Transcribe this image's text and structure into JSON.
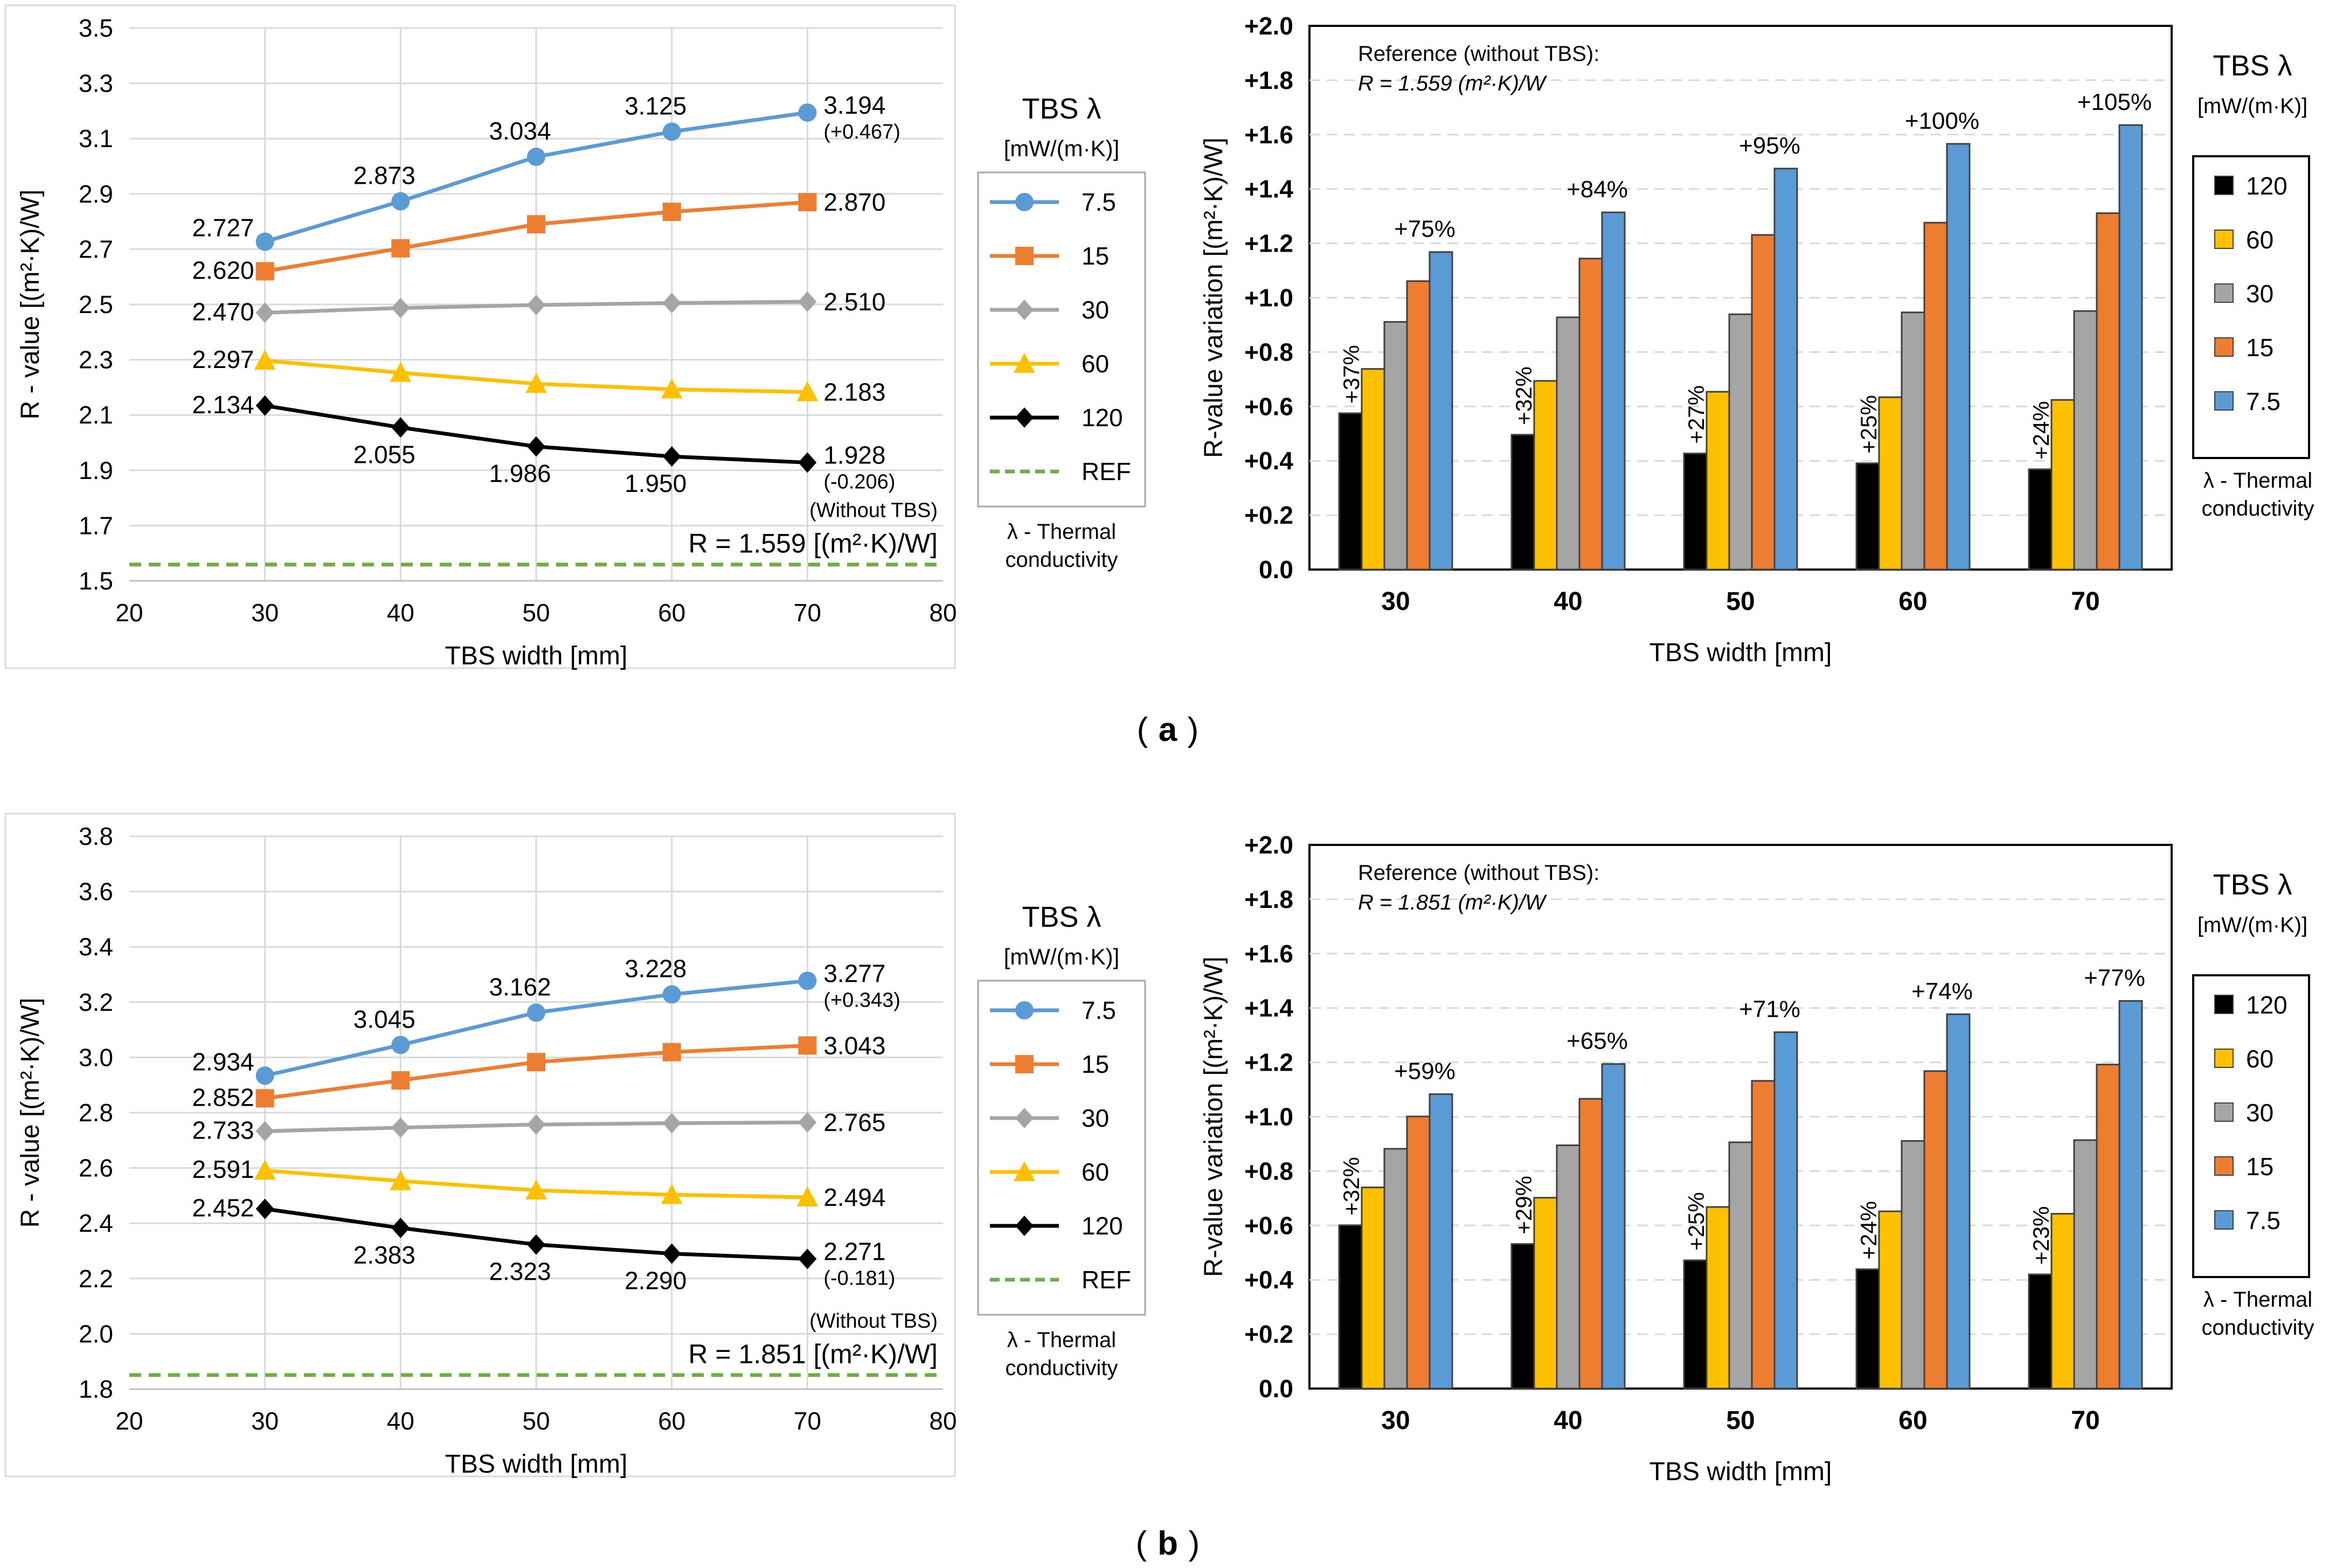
{
  "figure": {
    "panel_labels": [
      "a",
      "b"
    ],
    "legend_title": "TBS λ",
    "legend_unit": "[mW/(m·K)]",
    "legend_footer_1": "λ - Thermal",
    "legend_footer_2": "conductivity"
  },
  "colors": {
    "7.5": "#5B9BD5",
    "15": "#ED7D31",
    "30": "#A5A5A5",
    "60": "#FFC000",
    "120": "#000000",
    "ref": "#70AD47",
    "grid": "#D9D9D9"
  },
  "chart_data": [
    {
      "type": "line",
      "panel": "a",
      "xlabel": "TBS width [mm]",
      "ylabel": "R - value  [(m²·K)/W]",
      "xlim": [
        20,
        80
      ],
      "xticks": [
        20,
        30,
        40,
        50,
        60,
        70,
        80
      ],
      "ylim": [
        1.5,
        3.5
      ],
      "yticks": [
        "1.5",
        "1.7",
        "1.9",
        "2.1",
        "2.3",
        "2.5",
        "2.7",
        "2.9",
        "3.1",
        "3.3",
        "3.5"
      ],
      "x": [
        30,
        40,
        50,
        60,
        70
      ],
      "series": [
        {
          "name": "7.5",
          "marker": "circle",
          "values": [
            2.727,
            2.873,
            3.034,
            3.125,
            3.194
          ],
          "labels": [
            "2.727",
            "2.873",
            "3.034",
            "3.125",
            "3.194"
          ]
        },
        {
          "name": "15",
          "marker": "square",
          "values": [
            2.62,
            2.703,
            2.79,
            2.835,
            2.87
          ],
          "labels": [
            "2.620",
            "",
            "",
            "",
            "2.870"
          ]
        },
        {
          "name": "30",
          "marker": "diamond",
          "values": [
            2.47,
            2.487,
            2.498,
            2.505,
            2.51
          ],
          "labels": [
            "2.470",
            "",
            "",
            "",
            "2.510"
          ]
        },
        {
          "name": "60",
          "marker": "triangle",
          "values": [
            2.297,
            2.253,
            2.213,
            2.193,
            2.183
          ],
          "labels": [
            "2.297",
            "",
            "",
            "",
            "2.183"
          ]
        },
        {
          "name": "120",
          "marker": "diamond",
          "values": [
            2.134,
            2.055,
            1.986,
            1.95,
            1.928
          ],
          "labels": [
            "2.134",
            "2.055",
            "1.986",
            "1.950",
            "1.928"
          ]
        }
      ],
      "ref_value": 1.559,
      "ref_legend": "REF",
      "ref_note": "(Without TBS)",
      "ref_label": "R = 1.559 [(m²·K)/W]",
      "delta_max": "(+0.467)",
      "delta_min": "(-0.206)"
    },
    {
      "type": "bar",
      "panel": "a",
      "xlabel": "TBS width [mm]",
      "ylabel": "R-value variation [(m²·K)/W]",
      "ylim": [
        0,
        2
      ],
      "yticks": [
        "0.0",
        "+0.2",
        "+0.4",
        "+0.6",
        "+0.8",
        "+1.0",
        "+1.2",
        "+1.4",
        "+1.6",
        "+1.8",
        "+2.0"
      ],
      "categories": [
        "30",
        "40",
        "50",
        "60",
        "70"
      ],
      "series": [
        {
          "name": "120",
          "values": [
            0.575,
            0.496,
            0.427,
            0.391,
            0.369
          ]
        },
        {
          "name": "60",
          "values": [
            0.738,
            0.694,
            0.654,
            0.634,
            0.624
          ]
        },
        {
          "name": "30",
          "values": [
            0.911,
            0.928,
            0.939,
            0.946,
            0.951
          ]
        },
        {
          "name": "15",
          "values": [
            1.061,
            1.144,
            1.231,
            1.276,
            1.311
          ]
        },
        {
          "name": "7.5",
          "values": [
            1.168,
            1.314,
            1.475,
            1.566,
            1.635
          ]
        }
      ],
      "pct_low": [
        "+37%",
        "+32%",
        "+27%",
        "+25%",
        "+24%"
      ],
      "pct_high": [
        "+75%",
        "+84%",
        "+95%",
        "+100%",
        "+105%"
      ],
      "reference_line1": "Reference (without TBS):",
      "reference_line2": "R = 1.559 (m²·K)/W"
    },
    {
      "type": "line",
      "panel": "b",
      "xlabel": "TBS width [mm]",
      "ylabel": "R - value  [(m²·K)/W]",
      "xlim": [
        20,
        80
      ],
      "xticks": [
        20,
        30,
        40,
        50,
        60,
        70,
        80
      ],
      "ylim": [
        1.8,
        3.8
      ],
      "yticks": [
        "1.8",
        "2.0",
        "2.2",
        "2.4",
        "2.6",
        "2.8",
        "3.0",
        "3.2",
        "3.4",
        "3.6",
        "3.8"
      ],
      "x": [
        30,
        40,
        50,
        60,
        70
      ],
      "series": [
        {
          "name": "7.5",
          "marker": "circle",
          "values": [
            2.934,
            3.045,
            3.162,
            3.228,
            3.277
          ],
          "labels": [
            "2.934",
            "3.045",
            "3.162",
            "3.228",
            "3.277"
          ]
        },
        {
          "name": "15",
          "marker": "square",
          "values": [
            2.852,
            2.917,
            2.983,
            3.019,
            3.043
          ],
          "labels": [
            "2.852",
            "",
            "",
            "",
            "3.043"
          ]
        },
        {
          "name": "30",
          "marker": "diamond",
          "values": [
            2.733,
            2.746,
            2.757,
            2.762,
            2.765
          ],
          "labels": [
            "2.733",
            "",
            "",
            "",
            "2.765"
          ]
        },
        {
          "name": "60",
          "marker": "triangle",
          "values": [
            2.591,
            2.553,
            2.519,
            2.503,
            2.494
          ],
          "labels": [
            "2.591",
            "",
            "",
            "",
            "2.494"
          ]
        },
        {
          "name": "120",
          "marker": "diamond",
          "values": [
            2.452,
            2.383,
            2.323,
            2.29,
            2.271
          ],
          "labels": [
            "2.452",
            "2.383",
            "2.323",
            "2.290",
            "2.271"
          ]
        }
      ],
      "ref_value": 1.851,
      "ref_legend": "REF",
      "ref_note": "(Without TBS)",
      "ref_label": "R = 1.851 [(m²·K)/W]",
      "delta_max": "(+0.343)",
      "delta_min": "(-0.181)"
    },
    {
      "type": "bar",
      "panel": "b",
      "xlabel": "TBS width [mm]",
      "ylabel": "R-value variation [(m²·K)/W]",
      "ylim": [
        0,
        2
      ],
      "yticks": [
        "0.0",
        "+0.2",
        "+0.4",
        "+0.6",
        "+0.8",
        "+1.0",
        "+1.2",
        "+1.4",
        "+1.6",
        "+1.8",
        "+2.0"
      ],
      "categories": [
        "30",
        "40",
        "50",
        "60",
        "70"
      ],
      "series": [
        {
          "name": "120",
          "values": [
            0.601,
            0.532,
            0.472,
            0.439,
            0.42
          ]
        },
        {
          "name": "60",
          "values": [
            0.74,
            0.702,
            0.668,
            0.652,
            0.643
          ]
        },
        {
          "name": "30",
          "values": [
            0.882,
            0.895,
            0.906,
            0.911,
            0.914
          ]
        },
        {
          "name": "15",
          "values": [
            1.001,
            1.066,
            1.132,
            1.168,
            1.192
          ]
        },
        {
          "name": "7.5",
          "values": [
            1.083,
            1.194,
            1.311,
            1.377,
            1.426
          ]
        }
      ],
      "pct_low": [
        "+32%",
        "+29%",
        "+25%",
        "+24%",
        "+23%"
      ],
      "pct_high": [
        "+59%",
        "+65%",
        "+71%",
        "+74%",
        "+77%"
      ],
      "reference_line1": "Reference (without TBS):",
      "reference_line2": "R = 1.851 (m²·K)/W"
    }
  ]
}
